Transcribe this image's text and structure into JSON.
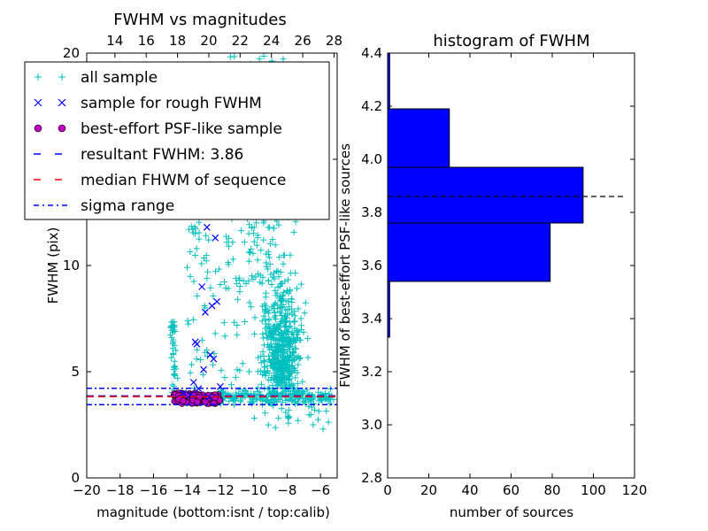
{
  "chart_data": [
    {
      "type": "scatter",
      "title": "FWHM vs magnitudes",
      "xlabel": "magnitude (bottom:isnt / top:calib)",
      "ylabel": "FWHM (pix)",
      "xlim": [
        -20,
        -5
      ],
      "ylim": [
        0,
        20
      ],
      "xticks": [
        "−20",
        "−18",
        "−16",
        "−14",
        "−12",
        "−10",
        "−8",
        "−6"
      ],
      "xtick_values": [
        -20,
        -18,
        -16,
        -14,
        -12,
        -10,
        -8,
        -6
      ],
      "top_xticks": [
        "14",
        "16",
        "18",
        "20",
        "22",
        "24",
        "26",
        "28"
      ],
      "top_xtick_values": [
        14,
        16,
        18,
        20,
        22,
        24,
        26,
        28
      ],
      "yticks": [
        "0",
        "5",
        "10",
        "15",
        "20"
      ],
      "ytick_values": [
        0,
        5,
        10,
        15,
        20
      ],
      "legend_position": "top-left",
      "legend": [
        {
          "label": "all sample",
          "marker": "+",
          "color": "#00bfbf"
        },
        {
          "label": "sample for rough FWHM",
          "marker": "x",
          "color": "#0000ff"
        },
        {
          "label": "best-effort PSF-like sample",
          "marker": "o",
          "color": "#bf00bf"
        },
        {
          "label": "resultant FWHM: 3.86",
          "marker": "dash",
          "color": "#0000ff"
        },
        {
          "label": "median FHWM of sequence",
          "marker": "dash",
          "color": "#ff0000"
        },
        {
          "label": "sigma range",
          "marker": "dashdot",
          "color": "#0000ff"
        }
      ],
      "lines": {
        "resultant_fwhm": 3.86,
        "median_fwhm": 3.83,
        "sigma_low": 3.45,
        "sigma_high": 4.22
      },
      "rough_sample_points": [
        [
          -12.8,
          11.8
        ],
        [
          -12.3,
          11.3
        ],
        [
          -13.1,
          9.0
        ],
        [
          -12.2,
          8.3
        ],
        [
          -12.5,
          8.1
        ],
        [
          -12.9,
          7.8
        ],
        [
          -13.5,
          6.4
        ],
        [
          -13.4,
          6.3
        ],
        [
          -12.6,
          5.8
        ],
        [
          -12.4,
          5.6
        ],
        [
          -13.0,
          5.1
        ],
        [
          -13.6,
          4.5
        ],
        [
          -12.0,
          4.3
        ],
        [
          -13.3,
          4.2
        ],
        [
          -14.2,
          4.0
        ],
        [
          -13.8,
          3.9
        ],
        [
          -12.7,
          3.8
        ]
      ],
      "psf_sample_range": {
        "x": [
          -14.8,
          -12.0
        ],
        "y": [
          3.5,
          4.0
        ]
      }
    },
    {
      "type": "bar",
      "orientation": "horizontal",
      "title": "histogram of FWHM",
      "xlabel": "number of sources",
      "ylabel": "FWHM of best-effort PSF-like sources",
      "xlim": [
        0,
        120
      ],
      "ylim": [
        2.8,
        4.4
      ],
      "xticks": [
        "0",
        "20",
        "40",
        "60",
        "80",
        "100",
        "120"
      ],
      "xtick_values": [
        0,
        20,
        40,
        60,
        80,
        100,
        120
      ],
      "yticks": [
        "2.8",
        "3.0",
        "3.2",
        "3.4",
        "3.6",
        "3.8",
        "4.0",
        "4.2",
        "4.4"
      ],
      "ytick_values": [
        2.8,
        3.0,
        3.2,
        3.4,
        3.6,
        3.8,
        4.0,
        4.2,
        4.4
      ],
      "bins": [
        {
          "from": 3.33,
          "to": 3.54,
          "count": 1
        },
        {
          "from": 3.54,
          "to": 3.76,
          "count": 79
        },
        {
          "from": 3.76,
          "to": 3.97,
          "count": 95
        },
        {
          "from": 3.97,
          "to": 4.19,
          "count": 30
        },
        {
          "from": 4.19,
          "to": 4.4,
          "count": 1
        }
      ],
      "bar_color": "#0000ff",
      "reference_line": {
        "y": 3.86,
        "x_to": 115
      }
    }
  ]
}
